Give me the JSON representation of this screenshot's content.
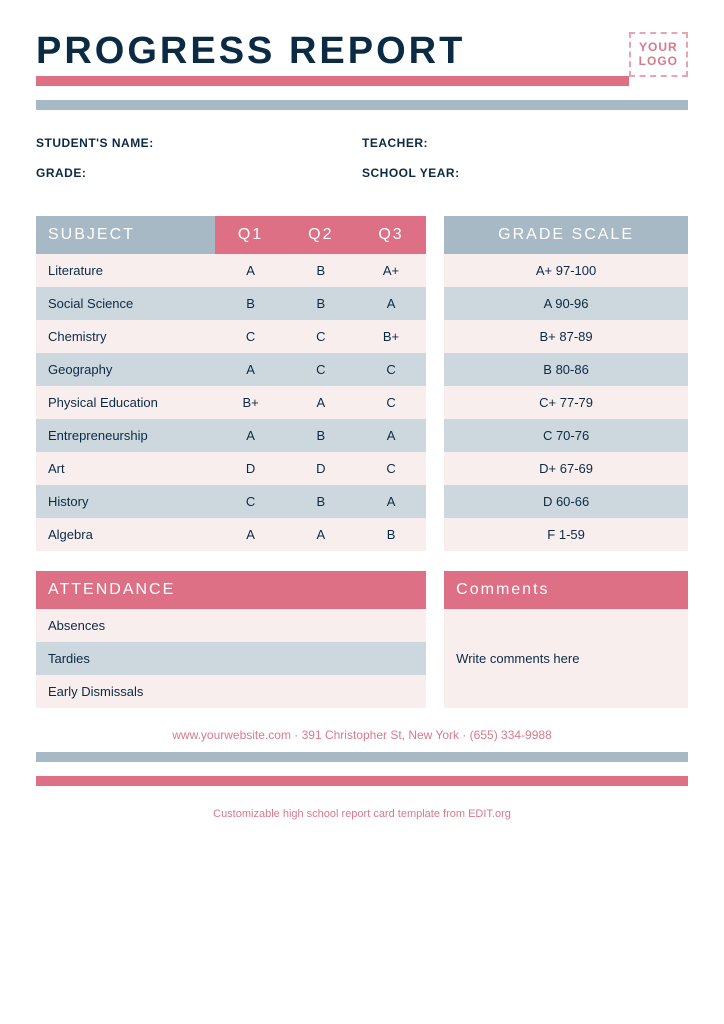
{
  "title": "PROGRESS REPORT",
  "logo": {
    "line1": "YOUR",
    "line2": "LOGO"
  },
  "info": {
    "student": "STUDENT'S NAME:",
    "grade": "GRADE:",
    "teacher": "TEACHER:",
    "year": "SCHOOL YEAR:"
  },
  "subjects": {
    "headers": [
      "SUBJECT",
      "Q1",
      "Q2",
      "Q3"
    ],
    "rows": [
      [
        "Literature",
        "A",
        "B",
        "A+"
      ],
      [
        "Social Science",
        "B",
        "B",
        "A"
      ],
      [
        "Chemistry",
        "C",
        "C",
        "B+"
      ],
      [
        "Geography",
        "A",
        "C",
        "C"
      ],
      [
        "Physical Education",
        "B+",
        "A",
        "C"
      ],
      [
        "Entrepreneurship",
        "A",
        "B",
        "A"
      ],
      [
        "Art",
        "D",
        "D",
        "C"
      ],
      [
        "History",
        "C",
        "B",
        "A"
      ],
      [
        "Algebra",
        "A",
        "A",
        "B"
      ]
    ]
  },
  "scale": {
    "header": "GRADE SCALE",
    "rows": [
      "A+ 97-100",
      "A 90-96",
      "B+ 87-89",
      "B 80-86",
      "C+ 77-79",
      "C 70-76",
      "D+ 67-69",
      "D 60-66",
      "F 1-59"
    ]
  },
  "attendance": {
    "header": "ATTENDANCE",
    "rows": [
      "Absences",
      "Tardies",
      "Early Dismissals"
    ]
  },
  "comments": {
    "header": "Comments",
    "body": "Write comments here"
  },
  "footer": "www.yourwebsite.com · 391 Christopher St, New York · (655) 334-9988",
  "caption": "Customizable high school report card template from EDIT.org",
  "colors": {
    "pink": "#dd7084",
    "blue": "#a7b9c5",
    "row0": "#f9eeee",
    "row1": "#cdd7de",
    "text": "#0b2b44"
  }
}
